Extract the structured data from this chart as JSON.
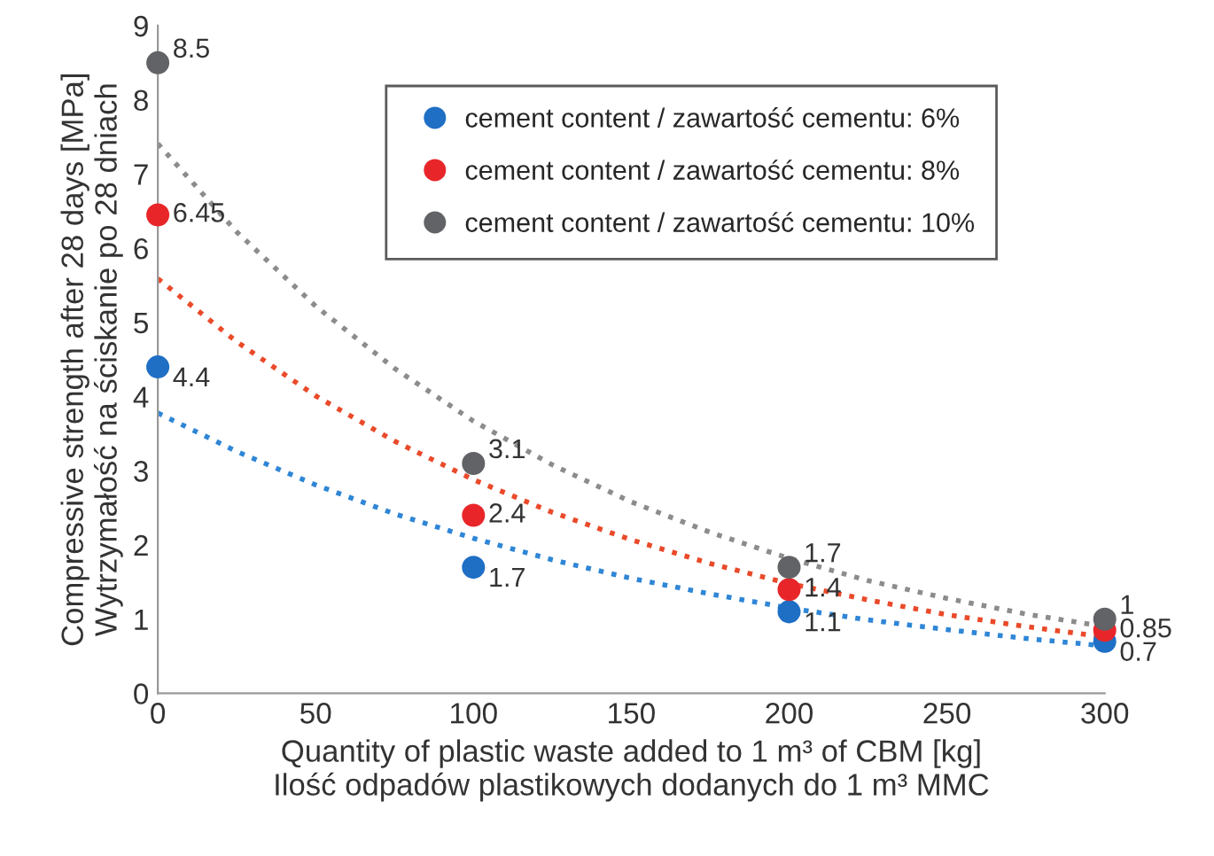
{
  "chart_data": {
    "type": "scatter",
    "xlabel": "Quantity of plastic waste added to 1 m³ of CBM [kg]\nIlość odpadów plastikowych dodanych do 1 m³ MMC",
    "ylabel": "Compressive strength after 28 days [MPa]\nWytrzymałość na ściskanie po 28 dniach",
    "xlim": [
      0,
      300
    ],
    "xticks": [
      0,
      50,
      100,
      150,
      200,
      250,
      300
    ],
    "ylim": [
      0,
      9
    ],
    "yticks": [
      0,
      1,
      2,
      3,
      4,
      5,
      6,
      7,
      8,
      9
    ],
    "grid": false,
    "legend": "top right",
    "marker": "circle",
    "series": [
      {
        "name": "cement content / zawartość cementu: 6%",
        "color": "#1f6fc5",
        "x": [
          0,
          100,
          200,
          300
        ],
        "values": [
          4.4,
          1.7,
          1.1,
          0.7
        ],
        "value_labels": [
          "4.4",
          "1.7",
          "1.1",
          "0.7"
        ]
      },
      {
        "name": "cement content / zawartość cementu: 8%",
        "color": "#e8262a",
        "x": [
          0,
          100,
          200,
          300
        ],
        "values": [
          6.45,
          2.4,
          1.4,
          0.85
        ],
        "value_labels": [
          "6.45",
          "2.4",
          "1.4",
          "0.85"
        ]
      },
      {
        "name": "cement content / zawartość cementu: 10%",
        "color": "#626366",
        "x": [
          0,
          100,
          200,
          300
        ],
        "values": [
          8.5,
          3.1,
          1.7,
          1
        ],
        "value_labels": [
          "8.5",
          "3.1",
          "1.7",
          "1"
        ]
      },
      {
        "type": "line",
        "marker": "none",
        "line_style": "dotted",
        "color": "#2f86d6",
        "x": [
          0,
          25,
          50,
          75,
          100,
          125,
          150,
          175,
          200,
          225,
          250,
          275,
          300
        ],
        "values": [
          3.78,
          3.26,
          2.81,
          2.42,
          2.09,
          1.8,
          1.55,
          1.34,
          1.15,
          0.99,
          0.86,
          0.74,
          0.64
        ]
      },
      {
        "type": "line",
        "marker": "none",
        "line_style": "dotted",
        "color": "#ea4a2a",
        "x": [
          0,
          25,
          50,
          75,
          100,
          125,
          150,
          175,
          200,
          225,
          250,
          275,
          300
        ],
        "values": [
          5.59,
          4.74,
          4.01,
          3.4,
          2.88,
          2.44,
          2.07,
          1.75,
          1.48,
          1.26,
          1.06,
          0.9,
          0.76
        ]
      },
      {
        "type": "line",
        "marker": "none",
        "line_style": "dotted",
        "color": "#8c8c8c",
        "x": [
          0,
          25,
          50,
          75,
          100,
          125,
          150,
          175,
          200,
          225,
          250,
          275,
          300
        ],
        "values": [
          7.41,
          6.22,
          5.22,
          4.38,
          3.67,
          3.08,
          2.58,
          2.17,
          1.82,
          1.52,
          1.28,
          1.07,
          0.9
        ]
      }
    ]
  }
}
